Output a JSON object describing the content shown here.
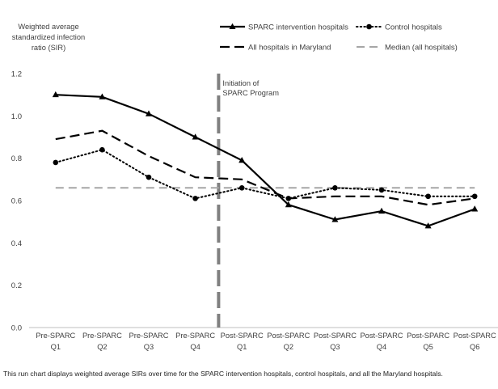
{
  "chart_data": {
    "type": "line",
    "ylabel": "Weighted average standardized infection ratio (SIR)",
    "ylabel_lines": [
      "Weighted average",
      "standardized infection",
      "ratio (SIR)"
    ],
    "ylim": [
      0,
      1.2
    ],
    "yticks": [
      "0.0",
      "0.2",
      "0.4",
      "0.6",
      "0.8",
      "1.0",
      "1.2"
    ],
    "grid": false,
    "legend_position": "top",
    "categories": [
      [
        "Pre-SPARC",
        "Q1"
      ],
      [
        "Pre-SPARC",
        "Q2"
      ],
      [
        "Pre-SPARC",
        "Q3"
      ],
      [
        "Pre-SPARC",
        "Q4"
      ],
      [
        "Post-SPARC",
        "Q1"
      ],
      [
        "Post-SPARC",
        "Q2"
      ],
      [
        "Post-SPARC",
        "Q3"
      ],
      [
        "Post-SPARC",
        "Q4"
      ],
      [
        "Post-SPARC",
        "Q5"
      ],
      [
        "Post-SPARC",
        "Q6"
      ]
    ],
    "series": [
      {
        "name": "SPARC intervention hospitals",
        "style": "solid",
        "marker": "triangle",
        "color": "#000000",
        "values": [
          1.1,
          1.09,
          1.01,
          0.9,
          0.79,
          0.58,
          0.51,
          0.55,
          0.48,
          0.56
        ]
      },
      {
        "name": "Control hospitals",
        "style": "dotted",
        "marker": "circle",
        "color": "#000000",
        "values": [
          0.78,
          0.84,
          0.71,
          0.61,
          0.66,
          0.61,
          0.66,
          0.65,
          0.62,
          0.62
        ]
      },
      {
        "name": "All hospitals in Maryland",
        "style": "dashed",
        "marker": "none",
        "color": "#000000",
        "values": [
          0.89,
          0.93,
          0.81,
          0.71,
          0.7,
          0.61,
          0.62,
          0.62,
          0.58,
          0.61
        ]
      },
      {
        "name": "Median (all hospitals)",
        "style": "dashed",
        "marker": "none",
        "color": "#a6a6a6",
        "values": [
          0.66,
          0.66,
          0.66,
          0.66,
          0.66,
          0.66,
          0.66,
          0.66,
          0.66,
          0.66
        ]
      }
    ],
    "annotation": {
      "lines": [
        "Initiation of",
        "SPARC Program"
      ],
      "position_between_categories": [
        3,
        4
      ],
      "color": "#808080"
    }
  },
  "caption": "This run chart displays weighted average SIRs over time for the SPARC intervention hospitals, control hospitals, and all the Maryland hospitals."
}
